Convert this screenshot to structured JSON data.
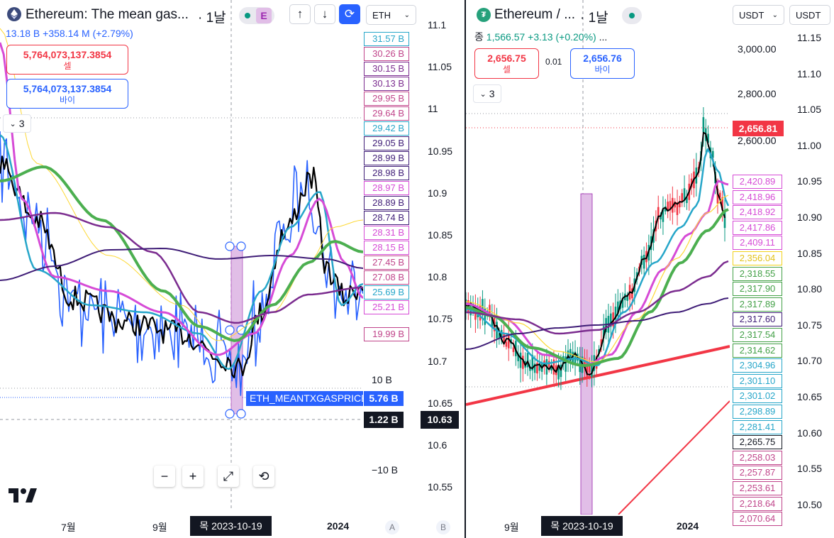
{
  "left_chart": {
    "symbol_title": "Ethereum: The mean gas...",
    "interval": "· 1날",
    "compare_chip": "E",
    "currency_select": "ETH",
    "ohlc_line": "13.18 B  +358.14 M (+2.79%)",
    "sell": {
      "value": "5,764,073,137.3854",
      "label": "셀"
    },
    "buy": {
      "value": "5,764,073,137.3854",
      "label": "바이"
    },
    "indicator_count": "3",
    "scale_a_labels": [
      {
        "text": "31.57 B",
        "color": "#26a6c9"
      },
      {
        "text": "30.26 B",
        "color": "#c0448a"
      },
      {
        "text": "30.15 B",
        "color": "#7b2c8f"
      },
      {
        "text": "30.13 B",
        "color": "#7b2c8f"
      },
      {
        "text": "29.95 B",
        "color": "#c0448a"
      },
      {
        "text": "29.64 B",
        "color": "#c0448a"
      },
      {
        "text": "29.42 B",
        "color": "#26a6c9"
      },
      {
        "text": "29.05 B",
        "color": "#3f1d77"
      },
      {
        "text": "28.99 B",
        "color": "#3f1d77"
      },
      {
        "text": "28.98 B",
        "color": "#3f1d77"
      },
      {
        "text": "28.97 B",
        "color": "#d64bd6"
      },
      {
        "text": "28.89 B",
        "color": "#3f1d77"
      },
      {
        "text": "28.74 B",
        "color": "#3f1d77"
      },
      {
        "text": "28.31 B",
        "color": "#d64bd6"
      },
      {
        "text": "28.15 B",
        "color": "#d64bd6"
      },
      {
        "text": "27.45 B",
        "color": "#c0448a"
      },
      {
        "text": "27.08 B",
        "color": "#c0448a"
      },
      {
        "text": "25.69 B",
        "color": "#26a6c9"
      },
      {
        "text": "25.21 B",
        "color": "#d64bd6"
      },
      {
        "text": "19.99 B",
        "color": "#c0448a"
      }
    ],
    "scale_a_ticks": [
      "10 B",
      "−10 B"
    ],
    "series_badge_name": "ETH_MEANTXGASPRICE",
    "series_badge_value": "5.76 B",
    "crosshair_value_a": "1.22 B",
    "crosshair_value_b": "10.63",
    "scale_b_ticks": [
      "11.1",
      "11.05",
      "11",
      "10.95",
      "10.9",
      "10.85",
      "10.8",
      "10.75",
      "10.7",
      "10.65",
      "10.6",
      "10.55"
    ],
    "x_labels": [
      "7월",
      "9월",
      "2024"
    ],
    "crosshair_date": "목 2023-10-19",
    "axis_a_label": "A",
    "axis_b_label": "B",
    "zoom_buttons": [
      "−",
      "+",
      "⤢",
      "⟲"
    ]
  },
  "right_chart": {
    "symbol_title": "Ethereum / ...",
    "interval": "· 1날",
    "close_line": {
      "label": "종",
      "value": "1,566.57",
      "change": "+3.13 (+0.20%)"
    },
    "sell": {
      "value": "2,656.75",
      "label": "셀"
    },
    "spread": "0.01",
    "buy": {
      "value": "2,656.76",
      "label": "바이"
    },
    "indicator_count": "3",
    "currency_select_1": "USDT",
    "currency_select_2": "USDT",
    "price_ticks": [
      "3,000.00",
      "2,800.00",
      "2,600.00"
    ],
    "last_price": "2,656.81",
    "price_labels": [
      {
        "text": "2,420.89",
        "color": "#d64bd6"
      },
      {
        "text": "2,418.96",
        "color": "#d64bd6"
      },
      {
        "text": "2,418.92",
        "color": "#d64bd6"
      },
      {
        "text": "2,417.86",
        "color": "#d64bd6"
      },
      {
        "text": "2,409.11",
        "color": "#d64bd6"
      },
      {
        "text": "2,356.04",
        "color": "#f2d21b"
      },
      {
        "text": "2,318.55",
        "color": "#43a047"
      },
      {
        "text": "2,317.90",
        "color": "#43a047"
      },
      {
        "text": "2,317.89",
        "color": "#43a047"
      },
      {
        "text": "2,317.60",
        "color": "#3f1d77"
      },
      {
        "text": "2,317.54",
        "color": "#43a047"
      },
      {
        "text": "2,314.62",
        "color": "#43a047"
      },
      {
        "text": "2,304.96",
        "color": "#26a6c9"
      },
      {
        "text": "2,301.10",
        "color": "#26a6c9"
      },
      {
        "text": "2,301.02",
        "color": "#26a6c9"
      },
      {
        "text": "2,298.89",
        "color": "#26a6c9"
      },
      {
        "text": "2,281.41",
        "color": "#26a6c9"
      },
      {
        "text": "2,265.75",
        "color": "#131722"
      },
      {
        "text": "2,258.03",
        "color": "#c0448a"
      },
      {
        "text": "2,257.87",
        "color": "#c0448a"
      },
      {
        "text": "2,253.61",
        "color": "#c0448a"
      },
      {
        "text": "2,218.64",
        "color": "#c0448a"
      },
      {
        "text": "2,070.64",
        "color": "#c0448a"
      }
    ],
    "right_scale_ticks": [
      "11.15",
      "11.10",
      "11.05",
      "11.00",
      "10.95",
      "10.90",
      "10.85",
      "10.80",
      "10.75",
      "10.70",
      "10.65",
      "10.60",
      "10.55",
      "10.50"
    ],
    "x_labels": [
      "9월",
      "2024"
    ],
    "crosshair_date": "목 2023-10-19"
  },
  "colors": {
    "sell_red": "#f23645",
    "buy_blue": "#2962ff",
    "price_line_blue": "#2962ff",
    "ma_black": "#000000",
    "ma_cyan": "#26a6c9",
    "ma_magenta": "#d64bd6",
    "ma_green": "#4caf50",
    "ma_purple": "#7b2c8f",
    "ma_dark_purple": "#3f1d77",
    "ma_yellow": "#f2d21b",
    "trend_red": "#f23645"
  }
}
